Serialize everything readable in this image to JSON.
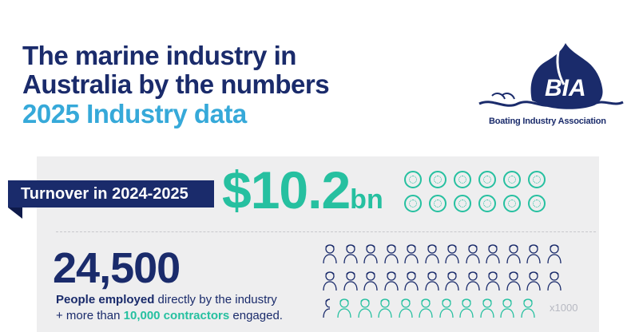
{
  "header": {
    "title_line1": "The marine industry in",
    "title_line2": "Australia by the numbers",
    "subtitle": "2025 Industry data"
  },
  "logo": {
    "mark_text": "BIA",
    "tagline": "Boating Industry Association"
  },
  "turnover": {
    "label": "Turnover in 2024-2025",
    "amount": "$10.2",
    "unit": "bn",
    "icon": "anchor-coin-icon"
  },
  "employment": {
    "count": "24,500",
    "line1_bold": "People employed",
    "line1_rest": " directly by the industry",
    "line2_prefix": "+ more than ",
    "line2_bold": "10,000 contractors",
    "line2_suffix": " engaged.",
    "scale_note": "x1000",
    "icon": "person-icon"
  },
  "colors": {
    "navy": "#1a2b6b",
    "sky": "#36a9d9",
    "teal": "#26c0a0",
    "panel": "#eeeeef"
  }
}
